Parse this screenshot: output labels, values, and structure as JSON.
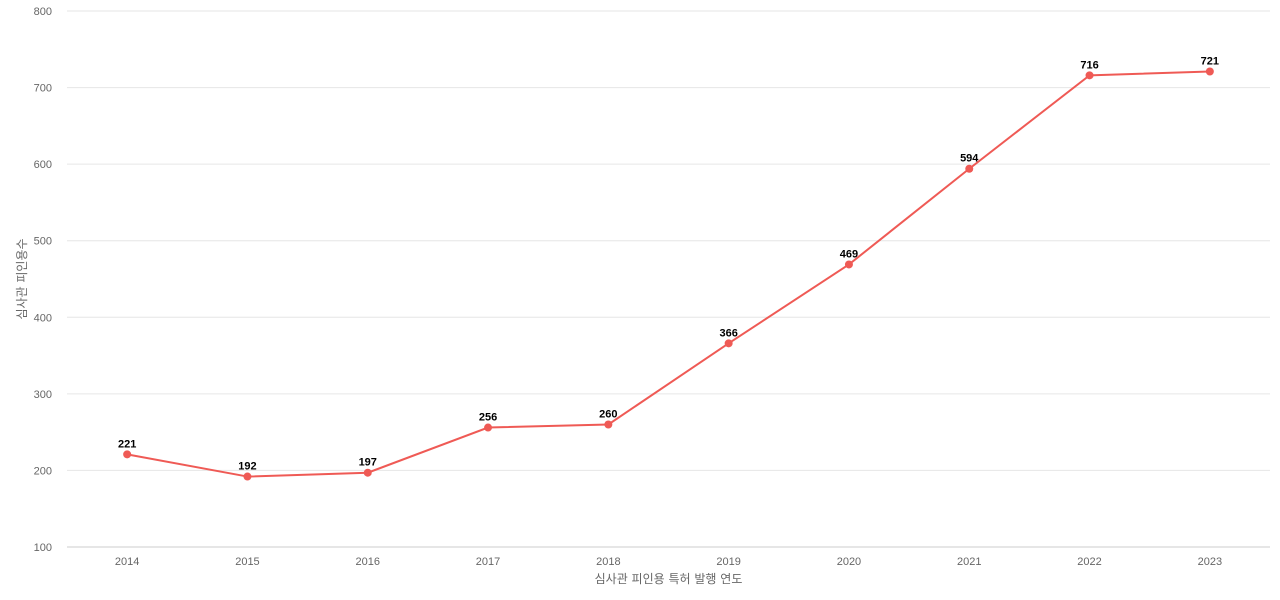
{
  "chart_data": {
    "type": "line",
    "title": "",
    "xlabel": "심사관 피인용 특허 발행 연도",
    "ylabel": "심사관 피인용수",
    "categories": [
      "2014",
      "2015",
      "2016",
      "2017",
      "2018",
      "2019",
      "2020",
      "2021",
      "2022",
      "2023"
    ],
    "series": [
      {
        "values": [
          221,
          192,
          197,
          256,
          260,
          366,
          469,
          594,
          716,
          721
        ]
      }
    ],
    "ylim": [
      100,
      800
    ],
    "yticks": [
      100,
      200,
      300,
      400,
      500,
      600,
      700,
      800
    ],
    "grid": true,
    "legend": "none",
    "colors": {
      "line": "#ef5a55",
      "grid": "#e6e6e6",
      "tick_text": "#666666",
      "data_label": "#000000"
    }
  }
}
